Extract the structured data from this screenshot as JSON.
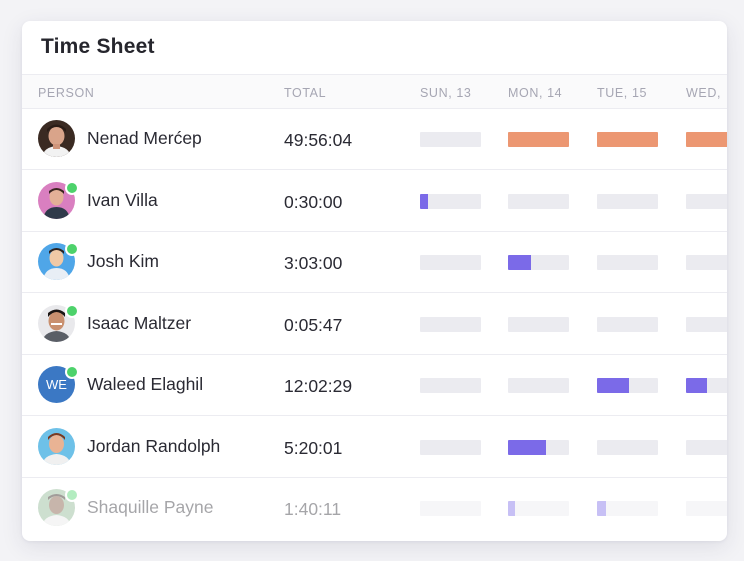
{
  "title": "Time Sheet",
  "columns": {
    "person": "PERSON",
    "total": "TOTAL",
    "days": [
      "SUN, 13",
      "MON, 14",
      "TUE, 15",
      "WED,"
    ]
  },
  "colors": {
    "logged_full": "#ec9772",
    "logged_partial": "#7b6ae8",
    "empty": "#ebebf0",
    "online": "#4dd26b"
  },
  "rows": [
    {
      "name": "Nenad Merćep",
      "total": "49:56:04",
      "avatar": "nenad-avatar",
      "online": false,
      "fills": [
        0,
        1,
        1,
        1
      ],
      "color": "logged_full"
    },
    {
      "name": "Ivan Villa",
      "total": "0:30:00",
      "avatar": "ivan-avatar",
      "online": true,
      "fills": [
        0.13,
        0,
        0,
        0
      ],
      "color": "logged_partial"
    },
    {
      "name": "Josh Kim",
      "total": "3:03:00",
      "avatar": "josh-avatar",
      "online": true,
      "fills": [
        0,
        0.38,
        0,
        0
      ],
      "color": "logged_partial"
    },
    {
      "name": "Isaac Maltzer",
      "total": "0:05:47",
      "avatar": "isaac-avatar",
      "online": true,
      "fills": [
        0,
        0,
        0,
        0
      ],
      "color": "logged_partial"
    },
    {
      "name": "Waleed Elaghil",
      "total": "12:02:29",
      "avatar": "initials",
      "initials": "WE",
      "online": true,
      "fills": [
        0,
        0,
        0.52,
        0.35
      ],
      "color": "logged_partial"
    },
    {
      "name": "Jordan Randolph",
      "total": "5:20:01",
      "avatar": "jordan-avatar",
      "online": false,
      "fills": [
        0,
        0.62,
        0,
        0
      ],
      "color": "logged_partial"
    },
    {
      "name": "Shaquille Payne",
      "total": "1:40:11",
      "avatar": "shaquille-avatar",
      "online": true,
      "fills": [
        0,
        0.12,
        0.14,
        0
      ],
      "color": "logged_partial"
    }
  ]
}
